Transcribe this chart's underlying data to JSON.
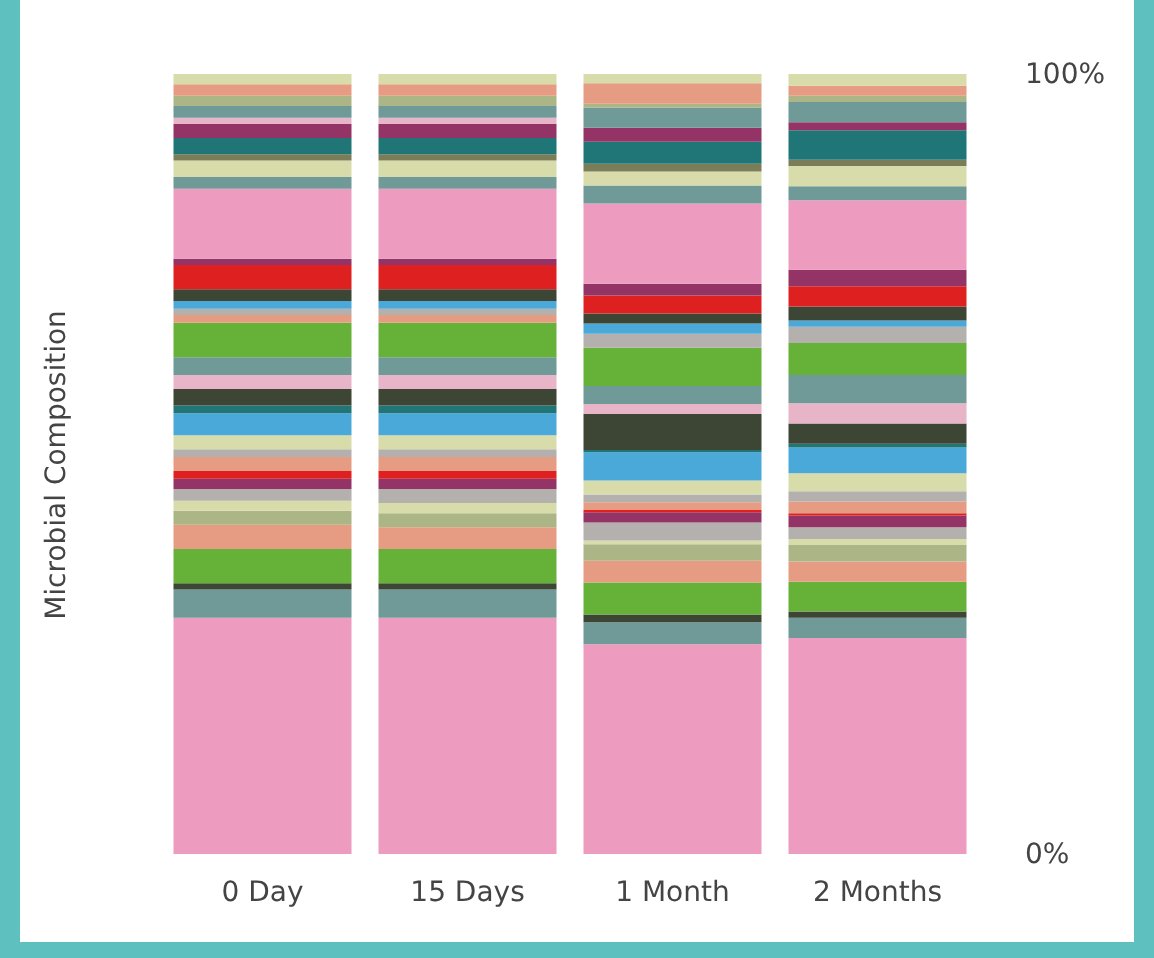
{
  "chart_data": {
    "type": "bar",
    "stacked": true,
    "ylabel": "Microbial Composition",
    "categories": [
      "0 Day",
      "15 Days",
      "1 Month",
      "2 Months"
    ],
    "ylim": [
      0,
      100
    ],
    "yticks": [
      {
        "value": 0,
        "label": "0%"
      },
      {
        "value": 100,
        "label": "100%"
      }
    ],
    "series": [
      {
        "color": "#ee9bc0",
        "values": [
          30.3,
          30.3,
          26.9,
          27.7
        ]
      },
      {
        "color": "#6f9a98",
        "values": [
          3.6,
          3.6,
          2.8,
          2.6
        ]
      },
      {
        "color": "#3d4535",
        "values": [
          0.8,
          0.8,
          1.0,
          0.8
        ]
      },
      {
        "color": "#66b238",
        "values": [
          4.4,
          4.4,
          4.1,
          3.8
        ]
      },
      {
        "color": "#e59c82",
        "values": [
          3.1,
          2.8,
          2.8,
          2.6
        ]
      },
      {
        "color": "#abb585",
        "values": [
          1.8,
          1.8,
          2.1,
          2.1
        ]
      },
      {
        "color": "#d8dbaa",
        "values": [
          1.3,
          1.3,
          0.5,
          0.8
        ]
      },
      {
        "color": "#b4b0ad",
        "values": [
          1.5,
          1.8,
          2.3,
          1.5
        ]
      },
      {
        "color": "#943365",
        "values": [
          1.3,
          1.3,
          1.3,
          1.5
        ]
      },
      {
        "color": "#df2020",
        "values": [
          1.0,
          1.0,
          0.3,
          0.3
        ]
      },
      {
        "color": "#e59c82",
        "values": [
          1.8,
          1.8,
          1.0,
          1.5
        ]
      },
      {
        "color": "#b4b0ad",
        "values": [
          1.0,
          1.0,
          1.0,
          1.3
        ]
      },
      {
        "color": "#d8dbaa",
        "values": [
          1.8,
          1.8,
          1.8,
          2.3
        ]
      },
      {
        "color": "#4aa9d8",
        "values": [
          2.8,
          2.8,
          3.6,
          3.3
        ]
      },
      {
        "color": "#207676",
        "values": [
          1.0,
          1.0,
          0.3,
          0.5
        ]
      },
      {
        "color": "#3d4535",
        "values": [
          2.1,
          2.1,
          4.6,
          2.6
        ]
      },
      {
        "color": "#e8b4c8",
        "values": [
          1.8,
          1.8,
          1.3,
          2.6
        ]
      },
      {
        "color": "#6f9a98",
        "values": [
          2.3,
          2.3,
          2.3,
          3.6
        ]
      },
      {
        "color": "#66b238",
        "values": [
          4.4,
          4.4,
          4.9,
          4.1
        ]
      },
      {
        "color": "#e59c82",
        "values": [
          1.0,
          1.0,
          null,
          null
        ]
      },
      {
        "color": "#b4b0ad",
        "values": [
          0.8,
          0.8,
          1.8,
          2.1
        ]
      },
      {
        "color": "#4aa9d8",
        "values": [
          1.0,
          1.0,
          1.3,
          0.8
        ]
      },
      {
        "color": "#3d4535",
        "values": [
          1.5,
          1.5,
          1.3,
          1.8
        ]
      },
      {
        "color": "#df2020",
        "values": [
          3.1,
          3.1,
          2.3,
          2.6
        ]
      },
      {
        "color": "#943365",
        "values": [
          0.8,
          0.8,
          1.5,
          2.1
        ]
      },
      {
        "color": "#ee9bc0",
        "values": [
          9.0,
          9.0,
          10.3,
          8.9
        ]
      },
      {
        "color": "#6f9a98",
        "values": [
          1.5,
          1.5,
          2.3,
          1.8
        ]
      },
      {
        "color": "#d8dbaa",
        "values": [
          2.1,
          2.1,
          1.8,
          2.6
        ]
      },
      {
        "color": "#7a7d58",
        "values": [
          0.8,
          0.8,
          1.0,
          0.8
        ]
      },
      {
        "color": "#207676",
        "values": [
          2.1,
          2.1,
          2.8,
          3.8
        ]
      },
      {
        "color": "#943365",
        "values": [
          1.8,
          1.8,
          1.8,
          1.0
        ]
      },
      {
        "color": "#e8b4c8",
        "values": [
          0.8,
          0.8,
          null,
          null
        ]
      },
      {
        "color": "#6f9a98",
        "values": [
          1.5,
          1.5,
          2.6,
          2.6
        ]
      },
      {
        "color": "#abb585",
        "values": [
          1.3,
          1.3,
          0.5,
          0.8
        ]
      },
      {
        "color": "#e59c82",
        "values": [
          1.5,
          1.5,
          2.6,
          1.3
        ]
      },
      {
        "color": "#d8dbaa",
        "values": [
          1.3,
          1.3,
          1.2,
          1.5
        ]
      }
    ]
  }
}
